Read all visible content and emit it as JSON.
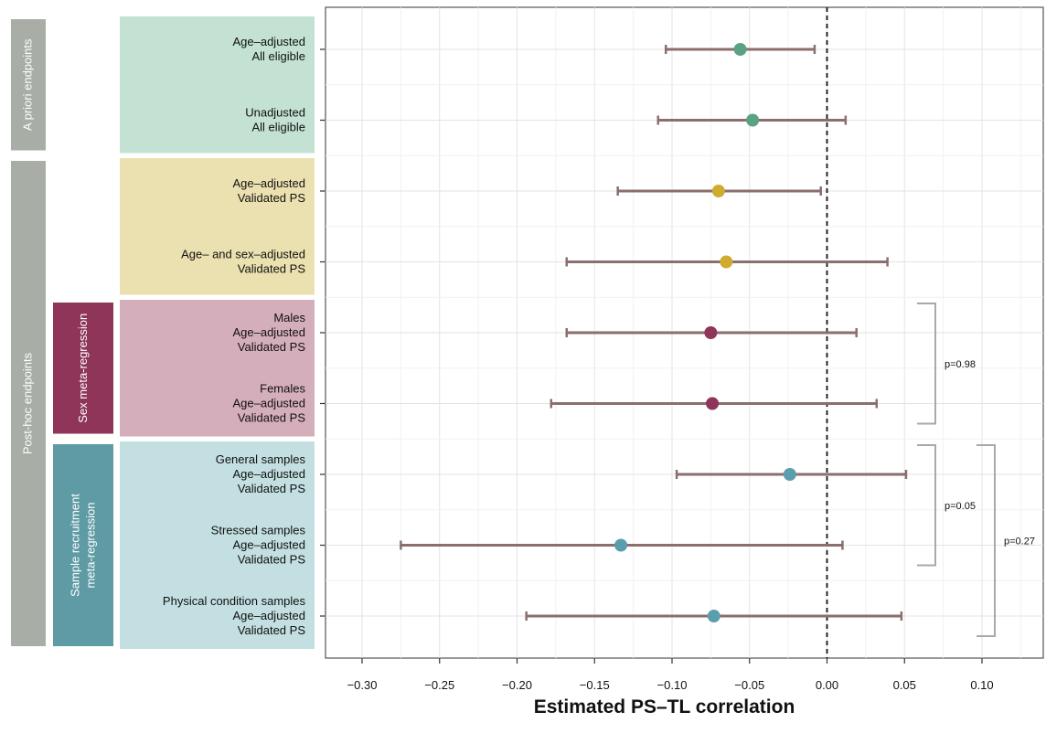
{
  "chart_data": {
    "type": "scatter",
    "subtype": "forest-plot",
    "title": "",
    "xlabel": "Estimated PS–TL correlation",
    "ylabel": "",
    "xlim": [
      -0.32,
      0.145
    ],
    "x_ticks": [
      -0.3,
      -0.25,
      -0.2,
      -0.15,
      -0.1,
      -0.05,
      0.0,
      0.05,
      0.1
    ],
    "x_tick_labels": [
      "−0.30",
      "−0.25",
      "−0.20",
      "−0.15",
      "−0.10",
      "−0.05",
      "0.00",
      "0.05",
      "0.10"
    ],
    "grid": true,
    "reference_line": 0.0,
    "groups": [
      {
        "label": "A priori endpoints",
        "color": "#a8aea6",
        "start_row": 0,
        "end_row": 1
      },
      {
        "label": "Post-hoc endpoints",
        "color": "#a8aea6",
        "start_row": 2,
        "end_row": 8
      }
    ],
    "subgroups": [
      {
        "label": "Sex meta-regression",
        "color": "#8e3559",
        "start_row": 4,
        "end_row": 5
      },
      {
        "label": "Sample recruitment\nmeta-regression",
        "color": "#5f9ba5",
        "start_row": 6,
        "end_row": 8
      }
    ],
    "panels": [
      {
        "color": "#c3e2d3",
        "start_row": 0,
        "end_row": 1
      },
      {
        "color": "#ebe1b0",
        "start_row": 2,
        "end_row": 3
      },
      {
        "color": "#d5aebc",
        "start_row": 4,
        "end_row": 5
      },
      {
        "color": "#c3dfe1",
        "start_row": 6,
        "end_row": 8
      }
    ],
    "error_bar_color": "#8b6e6e",
    "rows": [
      {
        "label": "Age–adjusted\nAll eligible",
        "estimate": -0.056,
        "lower": -0.104,
        "upper": -0.008,
        "color": "#5aa282"
      },
      {
        "label": "Unadjusted\nAll eligible",
        "estimate": -0.048,
        "lower": -0.109,
        "upper": 0.012,
        "color": "#5aa282"
      },
      {
        "label": "Age–adjusted\nValidated PS",
        "estimate": -0.07,
        "lower": -0.135,
        "upper": -0.004,
        "color": "#cfab2e"
      },
      {
        "label": "Age– and sex–adjusted\nValidated PS",
        "estimate": -0.065,
        "lower": -0.168,
        "upper": 0.039,
        "color": "#cfab2e"
      },
      {
        "label": "Males\nAge–adjusted\nValidated PS",
        "estimate": -0.075,
        "lower": -0.168,
        "upper": 0.019,
        "color": "#8e3559"
      },
      {
        "label": "Females\nAge–adjusted\nValidated PS",
        "estimate": -0.074,
        "lower": -0.178,
        "upper": 0.032,
        "color": "#8e3559"
      },
      {
        "label": "General samples\nAge–adjusted\nValidated PS",
        "estimate": -0.024,
        "lower": -0.097,
        "upper": 0.051,
        "color": "#5a9ead"
      },
      {
        "label": "Stressed samples\nAge–adjusted\nValidated PS",
        "estimate": -0.133,
        "lower": -0.275,
        "upper": 0.01,
        "color": "#5a9ead"
      },
      {
        "label": "Physical condition samples\nAge–adjusted\nValidated PS",
        "estimate": -0.073,
        "lower": -0.194,
        "upper": 0.048,
        "color": "#5a9ead"
      }
    ],
    "comparisons": [
      {
        "label": "p=0.98",
        "start_row": 4,
        "end_row": 5,
        "level": 0
      },
      {
        "label": "p=0.05",
        "start_row": 6,
        "end_row": 7,
        "level": 0
      },
      {
        "label": "p=0.27",
        "start_row": 6,
        "end_row": 8,
        "level": 1
      }
    ]
  }
}
